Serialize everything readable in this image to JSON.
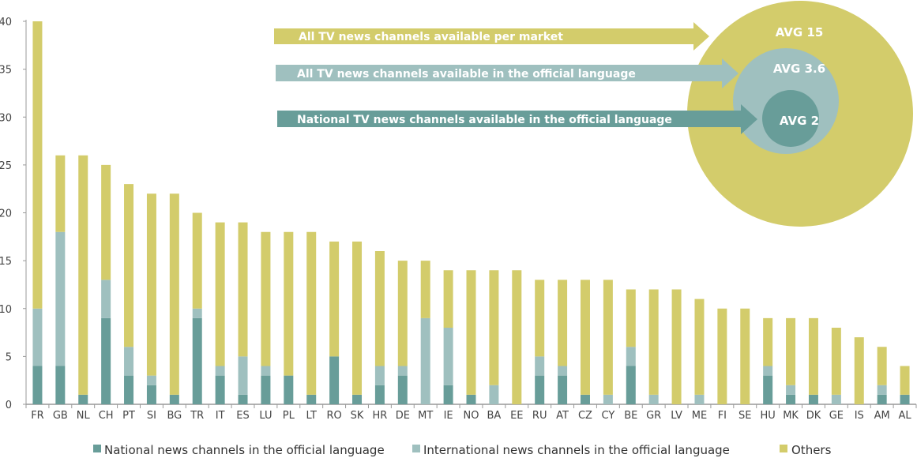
{
  "chart_data": {
    "type": "bar",
    "stacked": true,
    "title": "",
    "xlabel": "",
    "ylabel": "",
    "ylim": [
      0,
      40
    ],
    "yticks": [
      0,
      5,
      10,
      15,
      20,
      25,
      30,
      35,
      40
    ],
    "grid": false,
    "legend_position": "bottom",
    "categories": [
      "FR",
      "GB",
      "NL",
      "CH",
      "PT",
      "SI",
      "BG",
      "TR",
      "IT",
      "ES",
      "LU",
      "PL",
      "LT",
      "RO",
      "SK",
      "HR",
      "DE",
      "MT",
      "IE",
      "NO",
      "BA",
      "EE",
      "RU",
      "AT",
      "CZ",
      "CY",
      "BE",
      "GR",
      "LV",
      "ME",
      "FI",
      "SE",
      "HU",
      "MK",
      "DK",
      "GE",
      "IS",
      "AM",
      "AL"
    ],
    "series": [
      {
        "name": "National news channels in the official language",
        "color": "#689d99",
        "values": [
          4,
          4,
          1,
          9,
          3,
          2,
          1,
          9,
          3,
          1,
          3,
          3,
          1,
          5,
          1,
          2,
          3,
          0,
          2,
          1,
          0,
          0,
          3,
          3,
          1,
          0,
          4,
          0,
          0,
          0,
          0,
          0,
          3,
          1,
          1,
          0,
          0,
          1,
          1
        ]
      },
      {
        "name": "International news channels in the official language",
        "color": "#9fc0bf",
        "values": [
          6,
          14,
          0,
          4,
          3,
          1,
          0,
          1,
          1,
          4,
          1,
          0,
          0,
          0,
          0,
          2,
          1,
          9,
          6,
          0,
          2,
          0,
          2,
          1,
          0,
          1,
          2,
          1,
          0,
          1,
          0,
          0,
          1,
          1,
          0,
          1,
          0,
          1,
          0
        ]
      },
      {
        "name": "Others",
        "color": "#d3cc6b",
        "values": [
          30,
          8,
          25,
          12,
          17,
          19,
          21,
          10,
          15,
          14,
          14,
          15,
          17,
          12,
          16,
          12,
          11,
          6,
          6,
          13,
          12,
          14,
          8,
          9,
          12,
          12,
          6,
          11,
          12,
          10,
          10,
          10,
          5,
          7,
          8,
          7,
          7,
          4,
          3
        ]
      }
    ],
    "annotations": {
      "arrows": [
        {
          "label": "All TV news channels available per market",
          "color": "#d3cc6b"
        },
        {
          "label": "All TV news channels available in the official language",
          "color": "#9fc0bf"
        },
        {
          "label": "National TV news channels available in the official language",
          "color": "#689d99"
        }
      ],
      "circles": [
        {
          "label": "AVG 15",
          "value": 15,
          "color": "#d3cc6b"
        },
        {
          "label": "AVG 3.6",
          "value": 3.6,
          "color": "#9fc0bf"
        },
        {
          "label": "AVG 2",
          "value": 2,
          "color": "#689d99"
        }
      ]
    }
  }
}
